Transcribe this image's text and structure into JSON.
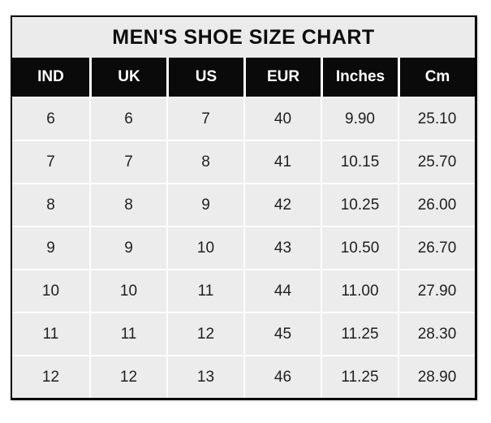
{
  "chart_data": {
    "type": "table",
    "title": "MEN'S SHOE SIZE CHART",
    "columns": [
      "IND",
      "UK",
      "US",
      "EUR",
      "Inches",
      "Cm"
    ],
    "rows": [
      [
        "6",
        "6",
        "7",
        "40",
        "9.90",
        "25.10"
      ],
      [
        "7",
        "7",
        "8",
        "41",
        "10.15",
        "25.70"
      ],
      [
        "8",
        "8",
        "9",
        "42",
        "10.25",
        "26.00"
      ],
      [
        "9",
        "9",
        "10",
        "43",
        "10.50",
        "26.70"
      ],
      [
        "10",
        "10",
        "11",
        "44",
        "11.00",
        "27.90"
      ],
      [
        "11",
        "11",
        "12",
        "45",
        "11.25",
        "28.30"
      ],
      [
        "12",
        "12",
        "13",
        "46",
        "11.25",
        "28.90"
      ]
    ],
    "colors": {
      "border": "#000000",
      "title_bg": "#ebebeb",
      "title_text": "#0d0d0d",
      "header_bg": "#0a0a0a",
      "header_text": "#ffffff",
      "cell_bg": "#ececec",
      "cell_text": "#1f1f1f",
      "grid_line": "#fdfdfd"
    }
  }
}
